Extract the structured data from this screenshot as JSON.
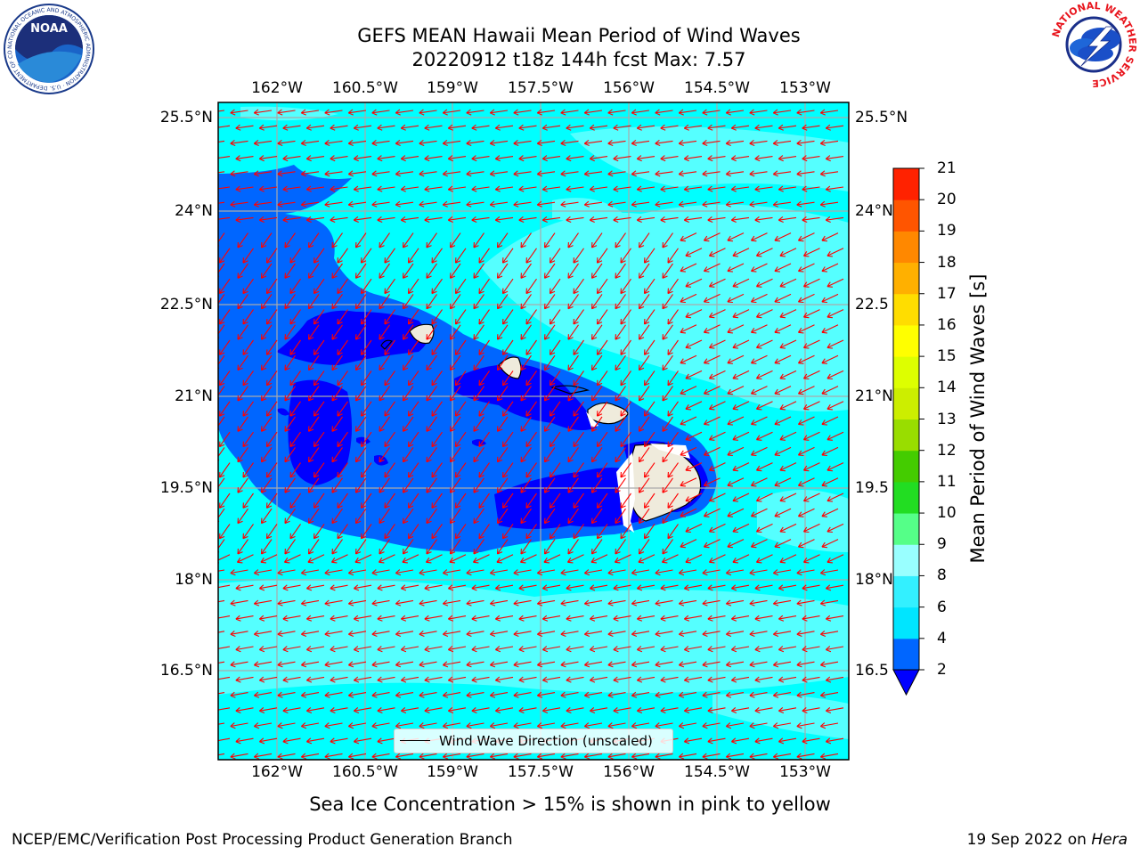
{
  "title_line1": "GEFS MEAN Hawaii Mean Period of Wind Waves",
  "title_line2": "20220912 t18z 144h fcst   Max: 7.57",
  "lon_ticks": [
    "162°W",
    "160.5°W",
    "159°W",
    "157.5°W",
    "156°W",
    "154.5°W",
    "153°W"
  ],
  "lat_ticks_left": [
    "25.5°N",
    "24°N",
    "22.5°N",
    "21°N",
    "19.5°N",
    "18°N",
    "16.5°N"
  ],
  "lat_ticks_right": [
    "25.5°N",
    "24°N",
    "22.5",
    "21°N",
    "19.5",
    "18°N",
    "16.5"
  ],
  "legend_label": "Wind Wave Direction (unscaled)",
  "colorbar": {
    "label": "Mean Period of Wind Waves [s]",
    "ticks": [
      "2",
      "4",
      "6",
      "8",
      "9",
      "10",
      "11",
      "12",
      "13",
      "14",
      "15",
      "16",
      "17",
      "18",
      "19",
      "20",
      "21"
    ],
    "colors": [
      "#0066ff",
      "#00e5ff",
      "#33f0ff",
      "#99ffff",
      "#55ff88",
      "#22dd22",
      "#44cc00",
      "#99dd00",
      "#ccee00",
      "#ddff00",
      "#ffff00",
      "#ffdd00",
      "#ffb000",
      "#ff8800",
      "#ff5500",
      "#ff2200",
      "#ff0000"
    ],
    "under_color": "#0000ff"
  },
  "caption": "Sea Ice Concentration > 15% is shown in pink to yellow",
  "footer_left": "NCEP/EMC/Verification Post Processing Product Generation Branch",
  "footer_right_prefix": "19 Sep 2022 on",
  "footer_right_host": "Hera",
  "logos": {
    "left": {
      "text": "NOAA",
      "ring_text": "NATIONAL OCEANIC AND ATMOSPHERIC ADMINISTRATION · U.S. DEPARTMENT OF COMMERCE"
    },
    "right": {
      "ring_text": "NATIONAL WEATHER SERVICE"
    }
  },
  "map_colors": {
    "period_2_4": "#0066ff",
    "period_4_6": "#00ffff",
    "period_6_8": "#55ffff",
    "period_under_2": "#0000ff",
    "land": "#efebdc",
    "arrows": "#ff0000",
    "grid": "#aaaaaa"
  }
}
